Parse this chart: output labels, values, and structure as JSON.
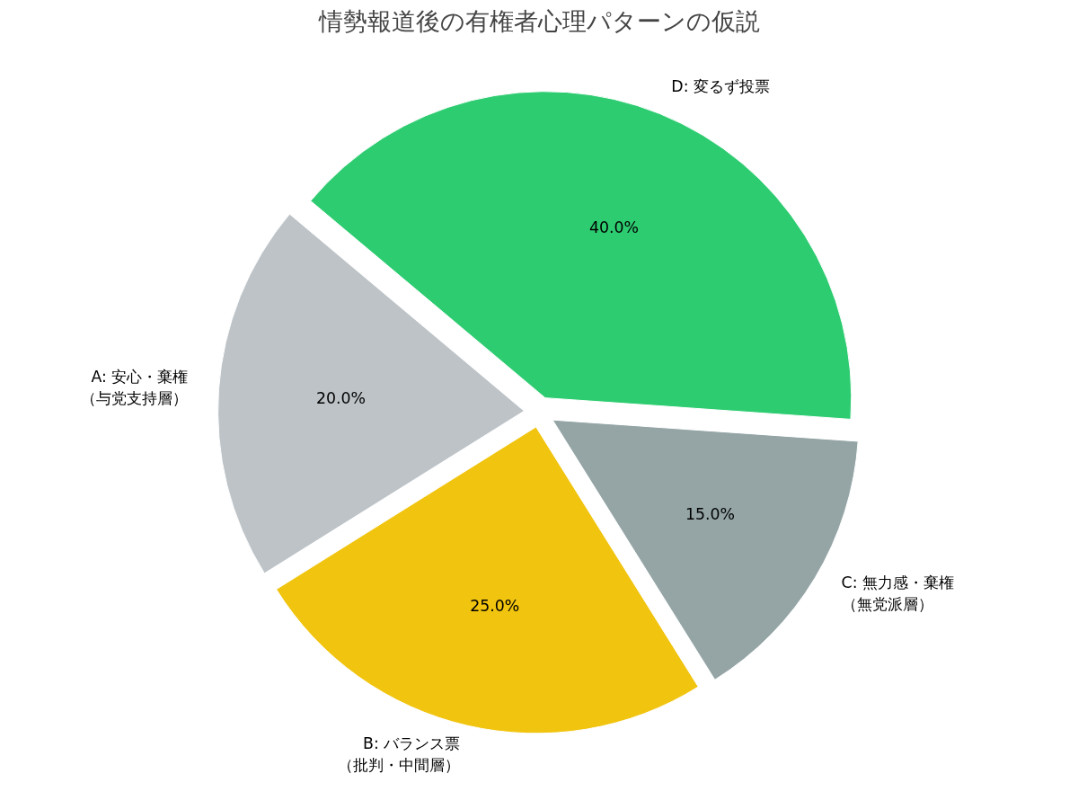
{
  "chart_data": {
    "type": "pie",
    "title": "情勢報道後の有権者心理パターンの仮説",
    "categories": [
      "A: 安心・棄権（与党支持層）",
      "B: バランス票（批判・中間層）",
      "C: 無力感・棄権（無党派層）",
      "D: 変るず投票"
    ],
    "values": [
      20,
      25,
      15,
      40
    ],
    "value_labels": [
      "20.0%",
      "25.0%",
      "15.0%",
      "40.0%"
    ],
    "colors": [
      "#bdc3c7",
      "#f1c40f",
      "#95a5a6",
      "#2ecc71"
    ]
  }
}
